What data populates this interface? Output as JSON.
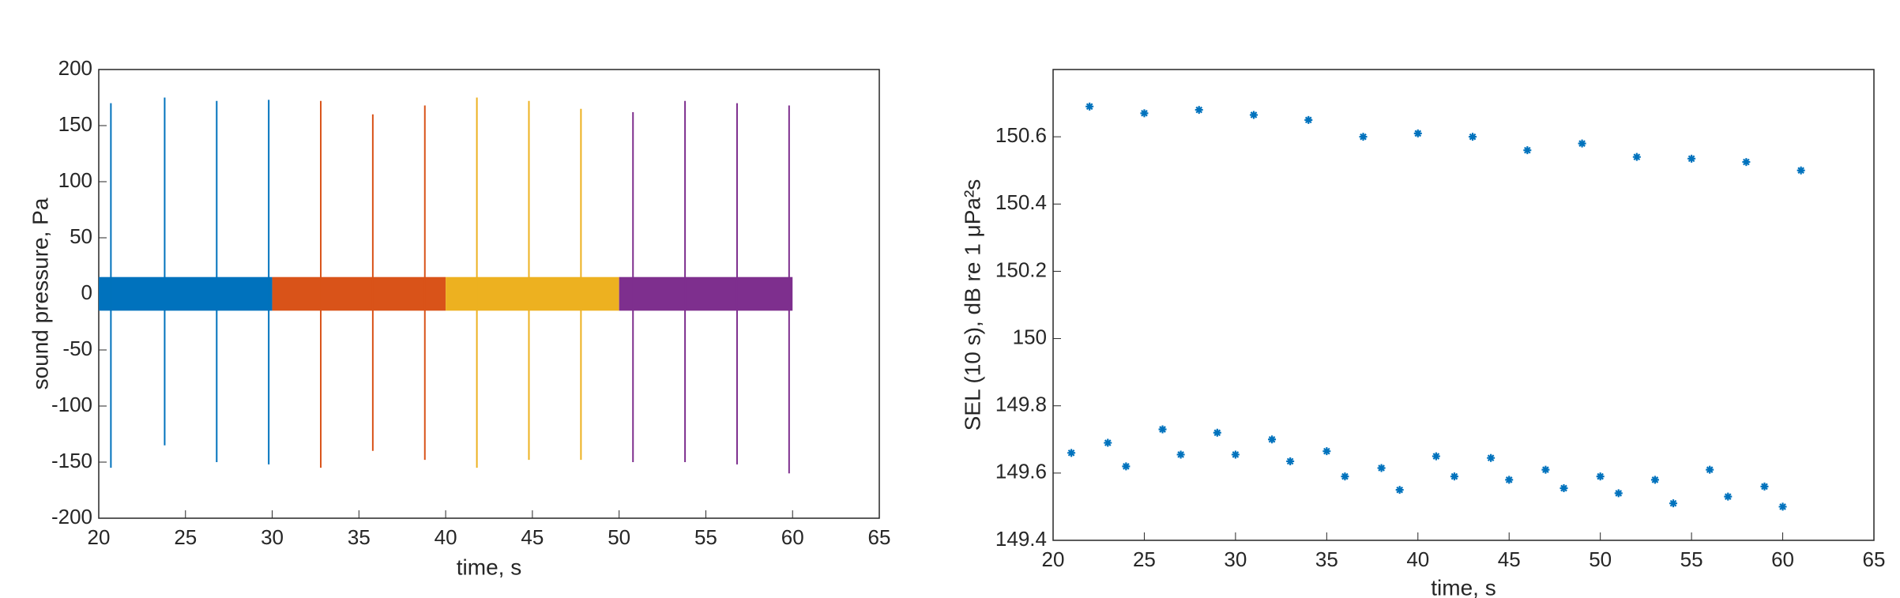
{
  "chart_data": [
    {
      "type": "waveform",
      "xlabel": "time, s",
      "ylabel": "sound pressure, Pa",
      "xlim": [
        20,
        65
      ],
      "ylim": [
        -200,
        200
      ],
      "xticks": [
        20,
        25,
        30,
        35,
        40,
        45,
        50,
        55,
        60,
        65
      ],
      "yticks": [
        -200,
        -150,
        -100,
        -50,
        0,
        50,
        100,
        150,
        200
      ],
      "series": [
        {
          "color": "#0072BD",
          "xrange": [
            20,
            30
          ],
          "band": [
            -15,
            15
          ],
          "x": [
            20.7,
            23.8,
            26.8,
            29.8
          ],
          "values": [
            170,
            175,
            172,
            173
          ],
          "negative_values": [
            -155,
            -135,
            -150,
            -152
          ]
        },
        {
          "color": "#D95319",
          "xrange": [
            30,
            40
          ],
          "band": [
            -15,
            15
          ],
          "x": [
            32.8,
            35.8,
            38.8
          ],
          "values": [
            172,
            160,
            168
          ],
          "negative_values": [
            -155,
            -140,
            -148
          ]
        },
        {
          "color": "#EDB120",
          "xrange": [
            40,
            50
          ],
          "band": [
            -15,
            15
          ],
          "x": [
            41.8,
            44.8,
            47.8
          ],
          "values": [
            175,
            172,
            165
          ],
          "negative_values": [
            -155,
            -148,
            -148
          ]
        },
        {
          "color": "#7E2F8E",
          "xrange": [
            50,
            60
          ],
          "band": [
            -15,
            15
          ],
          "x": [
            50.8,
            53.8,
            56.8,
            59.8
          ],
          "values": [
            162,
            172,
            170,
            168
          ],
          "negative_values": [
            -150,
            -150,
            -152,
            -160
          ]
        }
      ]
    },
    {
      "type": "scatter",
      "xlabel": "time, s",
      "ylabel": "SEL (10 s), dB re 1 μPa²s",
      "xlim": [
        20,
        65
      ],
      "ylim": [
        149.4,
        150.8
      ],
      "xticks": [
        20,
        25,
        30,
        35,
        40,
        45,
        50,
        55,
        60,
        65
      ],
      "yticks": [
        149.4,
        149.6,
        149.8,
        150,
        150.2,
        150.4,
        150.6
      ],
      "color": "#0072BD",
      "x": [
        21,
        22,
        23,
        24,
        25,
        26,
        27,
        28,
        29,
        30,
        31,
        32,
        33,
        34,
        35,
        36,
        37,
        38,
        39,
        40,
        41,
        42,
        43,
        44,
        45,
        46,
        47,
        48,
        49,
        50,
        51,
        52,
        53,
        54,
        55,
        56,
        57,
        58,
        59,
        60,
        61
      ],
      "values": [
        149.66,
        150.69,
        149.69,
        149.62,
        150.67,
        149.73,
        149.655,
        150.68,
        149.72,
        149.655,
        150.665,
        149.7,
        149.635,
        150.65,
        149.665,
        149.59,
        150.6,
        149.615,
        149.55,
        150.61,
        149.65,
        149.59,
        150.6,
        149.645,
        149.58,
        150.56,
        149.61,
        149.555,
        150.58,
        149.59,
        149.54,
        150.54,
        149.58,
        149.51,
        150.535,
        149.61,
        149.53,
        150.525,
        149.56,
        149.5,
        150.5
      ]
    }
  ]
}
